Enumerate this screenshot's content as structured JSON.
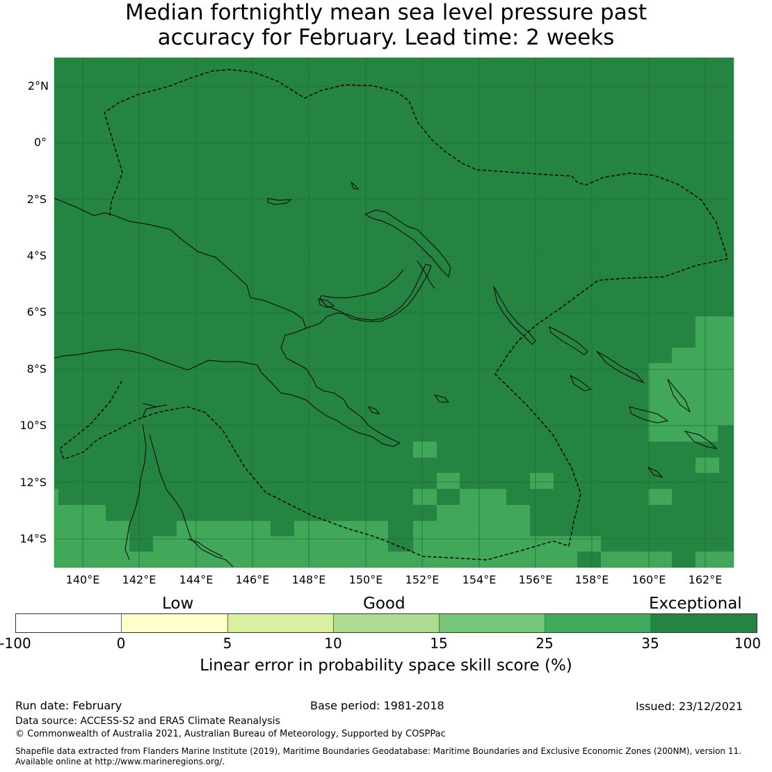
{
  "title": {
    "line1": "Median fortnightly mean sea level pressure past",
    "line2": "accuracy for February. Lead time: 2 weeks"
  },
  "map": {
    "lat_labels": [
      "2°N",
      "0°",
      "2°S",
      "4°S",
      "6°S",
      "8°S",
      "10°S",
      "12°S",
      "14°S"
    ],
    "lon_labels": [
      "140°E",
      "142°E",
      "144°E",
      "146°E",
      "148°E",
      "150°E",
      "152°E",
      "154°E",
      "156°E",
      "158°E",
      "160°E",
      "162°E"
    ],
    "base_color": "#268442",
    "lighter_color": "#41a85a",
    "eez_line_style": "dashed",
    "coastline_color": "#000000"
  },
  "colorbar": {
    "categories": [
      "Low",
      "Good",
      "Exceptional"
    ],
    "ticks": [
      "-100",
      "0",
      "5",
      "10",
      "15",
      "25",
      "35",
      "100"
    ],
    "colors": [
      "#ffffff",
      "#ffffcc",
      "#d9f0a3",
      "#addd8e",
      "#78c679",
      "#41ab5d",
      "#238443"
    ],
    "label": "Linear error in probability space skill score (%)"
  },
  "footer": {
    "run_date": "Run date: February",
    "base_period": "Base period: 1981-2018",
    "issued": "Issued: 23/12/2021",
    "data_source": "Data source: ACCESS-S2 and ERA5 Climate Reanalysis",
    "copyright": "© Commonwealth of Australia 2021, Australian Bureau of Meteorology, Supported by COSPPac",
    "shapefile_line1": "Shapefile data extracted from Flanders Marine Institute (2019), Maritime Boundaries Geodatabase: Maritime Boundaries and Exclusive Economic Zones (200NM), version 11.",
    "shapefile_line2": "Available online at http://www.marineregions.org/."
  }
}
